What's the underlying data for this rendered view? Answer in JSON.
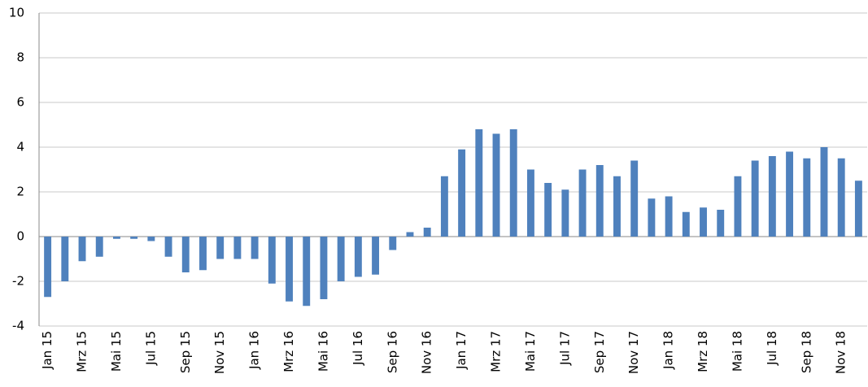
{
  "chart_data": {
    "type": "bar",
    "categories": [
      "Jan 15",
      null,
      "Mrz 15",
      null,
      "Mai 15",
      null,
      "Jul 15",
      null,
      "Sep 15",
      null,
      "Nov 15",
      null,
      "Jan 16",
      null,
      "Mrz 16",
      null,
      "Mai 16",
      null,
      "Jul 16",
      null,
      "Sep 16",
      null,
      "Nov 16",
      null,
      "Jan 17",
      null,
      "Mrz 17",
      null,
      "Mai 17",
      null,
      "Jul 17",
      null,
      "Sep 17",
      null,
      "Nov 17",
      null,
      "Jan 18",
      null,
      "Mrz 18",
      null,
      "Mai 18",
      null,
      "Jul 18",
      null,
      "Sep 18",
      null,
      "Nov 18",
      null
    ],
    "values": [
      -2.7,
      -2.0,
      -1.1,
      -0.9,
      -0.1,
      -0.1,
      -0.2,
      -0.9,
      -1.6,
      -1.5,
      -1.0,
      -1.0,
      -1.0,
      -2.1,
      -2.9,
      -3.1,
      -2.8,
      -2.0,
      -1.8,
      -1.7,
      -0.6,
      0.2,
      0.4,
      2.7,
      3.9,
      4.8,
      4.6,
      4.8,
      3.0,
      2.4,
      2.1,
      3.0,
      3.2,
      2.7,
      3.4,
      1.7,
      1.8,
      1.1,
      1.3,
      1.2,
      2.7,
      3.4,
      3.6,
      3.8,
      3.5,
      4.0,
      3.5,
      2.5
    ],
    "color": "#4f81bd",
    "ylim": [
      -4,
      10
    ],
    "yticks": [
      -4,
      -2,
      0,
      2,
      4,
      6,
      8,
      10
    ],
    "grid": true
  }
}
